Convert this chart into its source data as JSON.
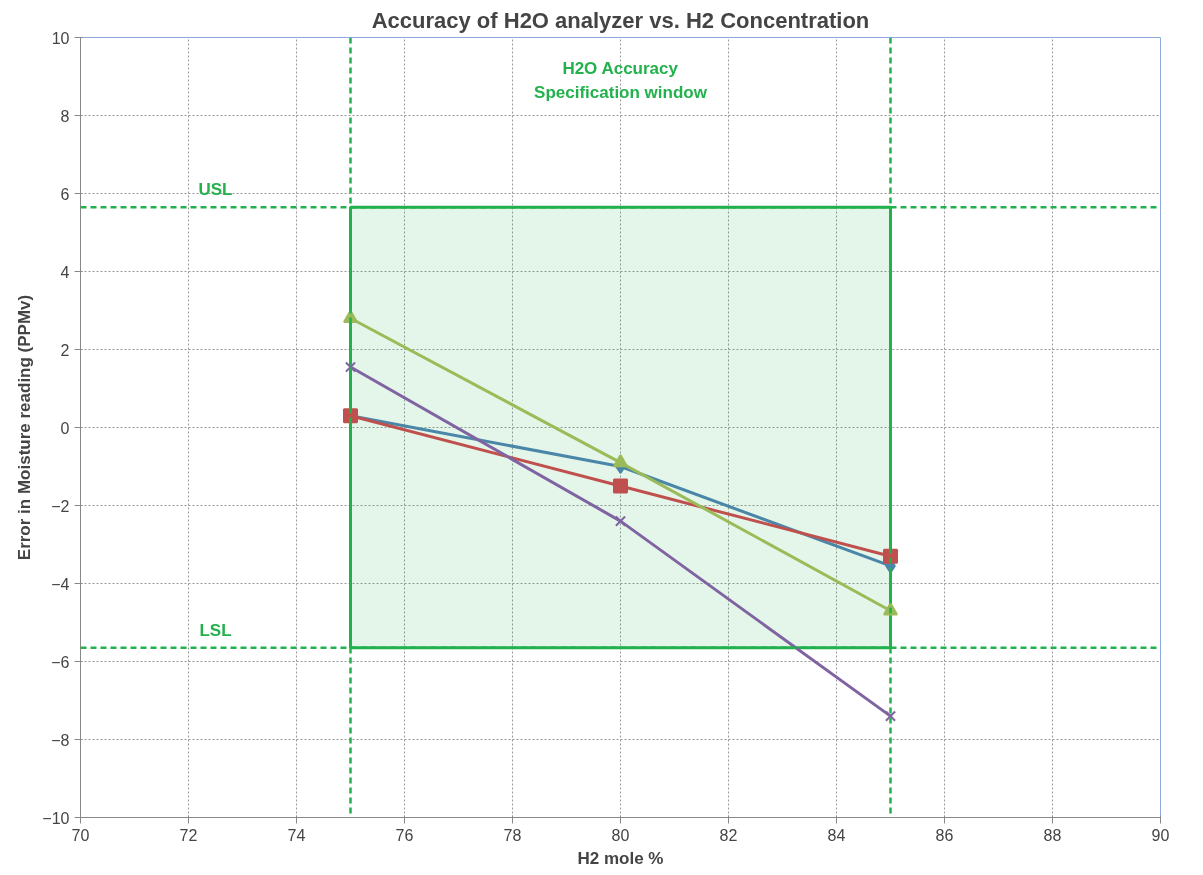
{
  "chart_data": {
    "type": "line",
    "title": "Accuracy of H2O analyzer vs. H2 Concentration",
    "xlabel": "H2 mole %",
    "ylabel": "Error in Moisture reading (PPMv)",
    "x": [
      75,
      80,
      85
    ],
    "series": [
      {
        "color": "#4a86a8",
        "marker": "diamond",
        "values": [
          0.3,
          -1.0,
          -3.55
        ]
      },
      {
        "color": "#c0504d",
        "marker": "square",
        "values": [
          0.3,
          -1.5,
          -3.3
        ]
      },
      {
        "color": "#9bbb59",
        "marker": "triangle",
        "values": [
          2.8,
          -0.9,
          -4.7
        ]
      },
      {
        "color": "#8064a2",
        "marker": "cross",
        "values": [
          1.55,
          -2.4,
          -7.4
        ]
      }
    ],
    "xlim": [
      70,
      90
    ],
    "xticks": [
      70,
      72,
      74,
      76,
      78,
      80,
      82,
      84,
      86,
      88,
      90
    ],
    "ylim": [
      -10,
      10
    ],
    "yticks": [
      -10,
      -8,
      -6,
      -4,
      -2,
      0,
      2,
      4,
      6,
      8,
      10
    ],
    "ref_lines": [
      {
        "axis": "y",
        "value": 5.65,
        "label": "USL",
        "color": "#22b14c",
        "line_style": "dashed"
      },
      {
        "axis": "y",
        "value": -5.65,
        "label": "LSL",
        "color": "#22b14c",
        "line_style": "dashed"
      },
      {
        "axis": "x",
        "value": 75,
        "color": "#22b14c",
        "line_style": "dashed"
      },
      {
        "axis": "x",
        "value": 85,
        "color": "#22b14c",
        "line_style": "dashed"
      }
    ],
    "bands": [
      {
        "axis": "y",
        "from": -5.65,
        "to": 5.65,
        "label": "H2O Accuracy\nSpecification window",
        "color": "#22b14c"
      }
    ],
    "grid": true
  }
}
